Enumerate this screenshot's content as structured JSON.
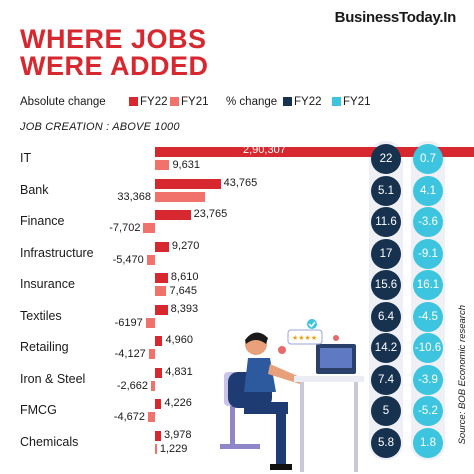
{
  "brand": "BusinessToday.In",
  "title_line1": "WHERE JOBS",
  "title_line2": "WERE ADDED",
  "legend": {
    "absolute_label": "Absolute change",
    "pct_label": "% change",
    "fy22": "FY22",
    "fy21": "FY21"
  },
  "subtitle": "JOB CREATION : ABOVE 1000",
  "source": "Source: BOB Economic research",
  "colors": {
    "title_red": "#d7282f",
    "fy22_abs": "#d7282f",
    "fy21_abs": "#f0726a",
    "fy22_pct": "#16324f",
    "fy21_pct": "#3dc5e0",
    "band": "#e9ebf1"
  },
  "chart_data": {
    "type": "bar",
    "categories": [
      "IT",
      "Bank",
      "Finance",
      "Infrastructure",
      "Insurance",
      "Textiles",
      "Retailing",
      "Iron & Steel",
      "FMCG",
      "Chemicals"
    ],
    "absolute_change": {
      "series": [
        {
          "name": "FY22",
          "values": [
            290307,
            43765,
            23765,
            9270,
            8610,
            8393,
            4960,
            4831,
            4226,
            3978
          ],
          "labels": [
            "2,90,307",
            "43,765",
            "23,765",
            "9,270",
            "8,610",
            "8,393",
            "4,960",
            "4,831",
            "4,226",
            "3,978"
          ]
        },
        {
          "name": "FY21",
          "values": [
            9631,
            33368,
            -7702,
            -5470,
            7645,
            -6197,
            -4127,
            -2662,
            -4672,
            1229
          ],
          "labels": [
            "9,631",
            "33,368",
            "-7,702",
            "-5,470",
            "7,645",
            "-6197",
            "-4,127",
            "-2,662",
            "-4,672",
            "1,229"
          ]
        }
      ]
    },
    "pct_change": {
      "series": [
        {
          "name": "FY22",
          "values": [
            22,
            5.1,
            11.6,
            17,
            15.6,
            6.4,
            14.2,
            7.4,
            5,
            5.8
          ],
          "labels": [
            "22",
            "5.1",
            "11.6",
            "17",
            "15.6",
            "6.4",
            "14.2",
            "7.4",
            "5",
            "5.8"
          ]
        },
        {
          "name": "FY21",
          "values": [
            0.7,
            4.1,
            -3.6,
            -9.1,
            16.1,
            -4.5,
            -10.6,
            -3.9,
            -5.2,
            1.8
          ],
          "labels": [
            "0.7",
            "4.1",
            "-3.6",
            "-9.1",
            "16.1",
            "-4.5",
            "-10.6",
            "-3.9",
            "-5.2",
            "1.8"
          ]
        }
      ]
    }
  }
}
